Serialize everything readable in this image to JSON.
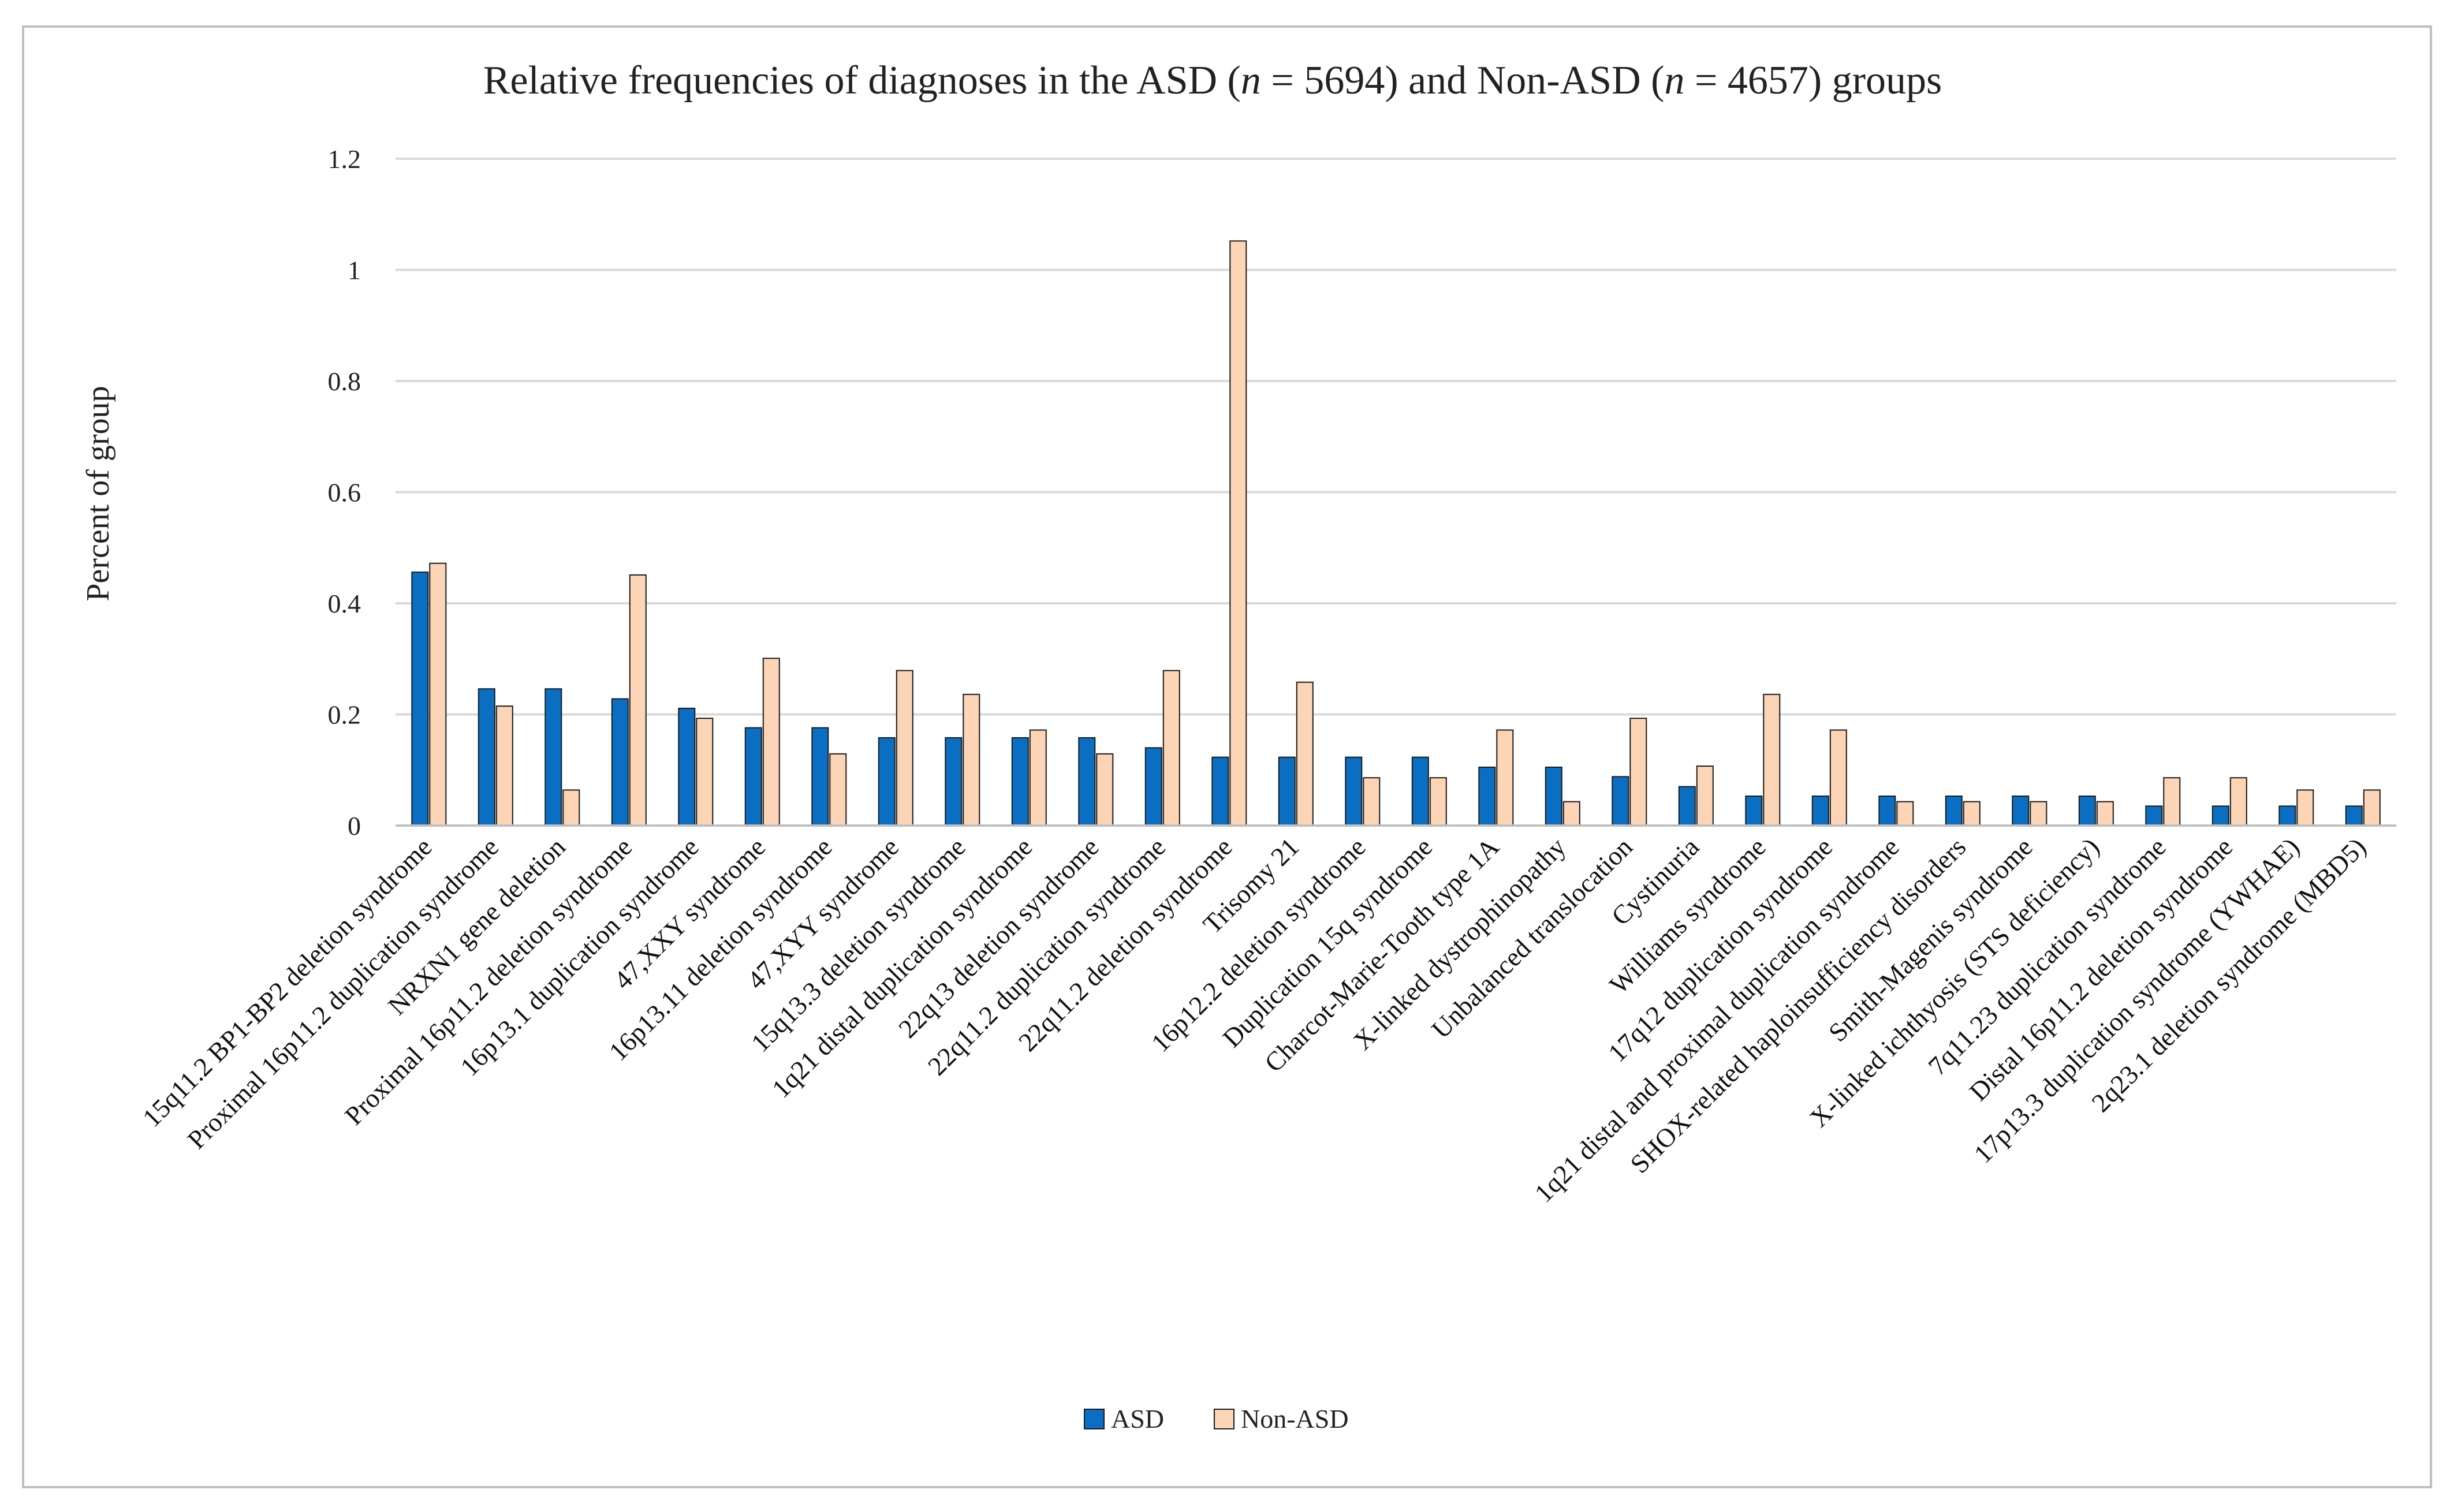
{
  "chart_data": {
    "type": "bar",
    "title_parts": [
      "Relative frequencies of diagnoses in the ASD (",
      "n",
      " = 5694) and Non-ASD (",
      "n",
      " = 4657) groups"
    ],
    "ylabel": "Percent of group",
    "xlabel": "",
    "ylim": [
      0,
      1.2
    ],
    "yticks": [
      "0",
      "0.2",
      "0.4",
      "0.6",
      "0.8",
      "1",
      "1.2"
    ],
    "grid": true,
    "legend_position": "bottom-center",
    "categories": [
      "15q11.2 BP1-BP2 deletion syndrome",
      "Proximal 16p11.2 duplication syndrome",
      "NRXN1 gene deletion",
      "Proximal 16p11.2 deletion syndrome",
      "16p13.1 duplication syndrome",
      "47,XXY syndrome",
      "16p13.11 deletion syndrome",
      "47,XYY syndrome",
      "15q13.3 deletion syndrome",
      "1q21 distal duplication syndrome",
      "22q13 deletion syndrome",
      "22q11.2 duplication syndrome",
      "22q11.2 deletion syndrome",
      "Trisomy 21",
      "16p12.2 deletion syndrome",
      "Duplication 15q syndrome",
      "Charcot-Marie-Tooth type 1A",
      "X-linked dystrophinopathy",
      "Unbalanced translocation",
      "Cystinuria",
      "Williams syndrome",
      "17q12 duplication syndrome",
      "1q21 distal and proximal duplication syndrome",
      "SHOX-related haploinsufficiency disorders",
      "Smith-Magenis syndrome",
      "X-linked ichthyosis (STS deficiency)",
      "7q11.23 duplication syndrome",
      "Distal 16p11.2 deletion syndrome",
      "17p13.3 duplication syndrome (YWHAE)",
      "2q23.1 deletion syndrome (MBD5)"
    ],
    "series": [
      {
        "name": "ASD",
        "color": "#0a6fc2",
        "values": [
          0.456,
          0.246,
          0.246,
          0.228,
          0.211,
          0.176,
          0.176,
          0.158,
          0.158,
          0.158,
          0.158,
          0.14,
          0.123,
          0.123,
          0.123,
          0.123,
          0.105,
          0.105,
          0.088,
          0.07,
          0.053,
          0.053,
          0.053,
          0.053,
          0.053,
          0.053,
          0.035,
          0.035,
          0.035,
          0.035
        ]
      },
      {
        "name": "Non-ASD",
        "color": "#fbd5b5",
        "values": [
          0.472,
          0.215,
          0.064,
          0.451,
          0.193,
          0.301,
          0.129,
          0.279,
          0.236,
          0.172,
          0.129,
          0.279,
          1.052,
          0.258,
          0.086,
          0.086,
          0.172,
          0.043,
          0.193,
          0.107,
          0.236,
          0.172,
          0.043,
          0.043,
          0.043,
          0.043,
          0.086,
          0.086,
          0.064,
          0.064
        ]
      }
    ]
  }
}
